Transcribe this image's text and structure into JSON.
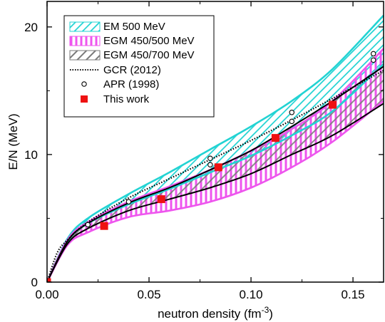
{
  "chart_data": {
    "type": "area",
    "xlabel": "neutron density (fm",
    "xlabel_sup": "-3",
    "xlabel_close": ")",
    "ylabel": "E/N (MeV)",
    "xlim": [
      0.0,
      0.165
    ],
    "ylim": [
      0,
      22
    ],
    "xticks": [
      0.0,
      0.05,
      0.1,
      0.15
    ],
    "xtick_labels": [
      "0.00",
      "0.05",
      "0.10",
      "0.15"
    ],
    "yticks": [
      0,
      10,
      20
    ],
    "ytick_labels": [
      "0",
      "10",
      "20"
    ],
    "grid": false,
    "legend_position": "top-left",
    "bands": [
      {
        "name": "EM 500 MeV",
        "color": "#22d3d3",
        "pattern": "diagonal",
        "x": [
          0.0,
          0.01,
          0.02,
          0.04,
          0.06,
          0.08,
          0.1,
          0.12,
          0.14,
          0.165
        ],
        "upper": [
          0.0,
          3.4,
          5.0,
          6.9,
          8.6,
          10.4,
          12.2,
          14.2,
          16.7,
          20.9
        ],
        "lower": [
          0.0,
          3.2,
          4.6,
          6.1,
          7.3,
          8.6,
          9.9,
          11.5,
          13.4,
          17.1
        ]
      },
      {
        "name": "EGM 450/500 MeV",
        "color": "#ee55ee",
        "pattern": "vertical",
        "x": [
          0.0,
          0.01,
          0.02,
          0.04,
          0.06,
          0.08,
          0.1,
          0.12,
          0.14,
          0.165
        ],
        "upper": [
          0.0,
          3.3,
          4.7,
          6.3,
          7.5,
          8.8,
          10.3,
          12.0,
          14.2,
          18.3
        ],
        "lower": [
          0.0,
          2.9,
          3.9,
          5.1,
          5.6,
          6.3,
          7.4,
          9.0,
          11.0,
          14.2
        ]
      },
      {
        "name": "EGM 450/700 MeV",
        "color": "#606060",
        "pattern": "diagonal-thick",
        "x": [
          0.0,
          0.01,
          0.02,
          0.04,
          0.06,
          0.08,
          0.1,
          0.12,
          0.14,
          0.165
        ],
        "upper": [
          0.0,
          3.2,
          4.6,
          6.2,
          7.4,
          8.8,
          10.3,
          12.2,
          14.2,
          16.9
        ],
        "lower": [
          0.0,
          3.0,
          4.2,
          5.6,
          6.5,
          7.4,
          8.5,
          10.0,
          11.5,
          14.0
        ]
      }
    ],
    "series": [
      {
        "name": "GCR (2012)",
        "style": "dotted",
        "color": "#000000",
        "x": [
          0.0,
          0.005,
          0.01,
          0.02,
          0.04,
          0.06,
          0.08,
          0.1,
          0.12,
          0.14,
          0.165
        ],
        "y": [
          0.0,
          2.3,
          3.3,
          4.7,
          6.6,
          8.1,
          9.6,
          11.1,
          12.7,
          14.4,
          16.6
        ]
      },
      {
        "name": "APR (1998)",
        "style": "open-circle",
        "color": "#000000",
        "x": [
          0.02,
          0.04,
          0.08,
          0.08,
          0.12,
          0.12,
          0.16,
          0.16
        ],
        "y": [
          4.5,
          6.3,
          9.2,
          9.7,
          12.6,
          13.3,
          17.4,
          17.9
        ]
      },
      {
        "name": "This work",
        "style": "filled-square",
        "color": "#ee1111",
        "x": [
          0.0,
          0.028,
          0.056,
          0.084,
          0.112,
          0.14
        ],
        "y": [
          0.0,
          4.4,
          6.5,
          9.0,
          11.3,
          13.9
        ]
      }
    ]
  }
}
